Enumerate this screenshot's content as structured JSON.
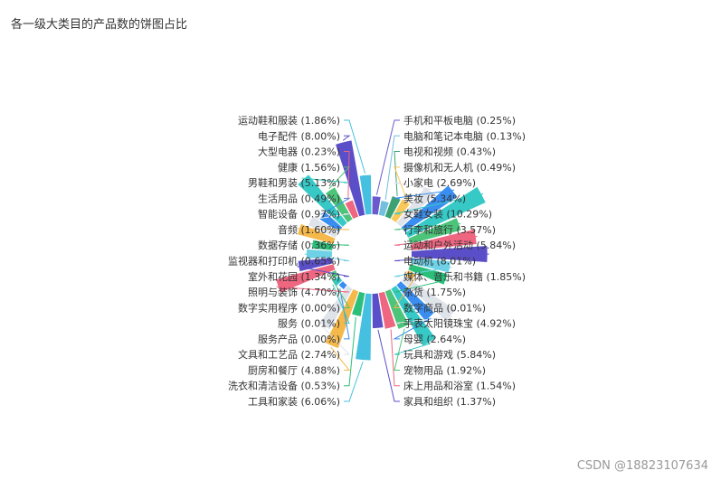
{
  "watermark": "CSDN @18823107634",
  "colors": [
    "#5470c6",
    "#91cc75",
    "#fac858",
    "#ee6666",
    "#73c0de",
    "#3ba272",
    "#fc8452",
    "#9a60b4",
    "#ea7ccc"
  ],
  "chart_data": {
    "type": "pie",
    "subtype": "rose",
    "title": "各一级大类目的产品数的饼图占比",
    "slices": [
      {
        "name": "手机和平板电脑",
        "value": 0.25,
        "label": "手机和平板电脑 (0.25%)",
        "color": "#6a5acd"
      },
      {
        "name": "电脑和笔记本电脑",
        "value": 0.13,
        "label": "电脑和笔记本电脑 (0.13%)",
        "color": "#73c0de"
      },
      {
        "name": "电视和视频",
        "value": 0.43,
        "label": "电视和视频 (0.43%)",
        "color": "#3ba272"
      },
      {
        "name": "摄像机和无人机",
        "value": 0.49,
        "label": "摄像机和无人机 (0.49%)",
        "color": "#fac858"
      },
      {
        "name": "小家电",
        "value": 2.69,
        "label": "小家电 (2.69%)",
        "color": "#e0e4ea"
      },
      {
        "name": "美妆",
        "value": 5.34,
        "label": "美妆 (5.34%)",
        "color": "#3a8ef0"
      },
      {
        "name": "女鞋女装",
        "value": 10.29,
        "label": "女鞋女装 (10.29%)",
        "color": "#36c9c6"
      },
      {
        "name": "行李和旅行",
        "value": 3.57,
        "label": "行李和旅行 (3.57%)",
        "color": "#4cc47a"
      },
      {
        "name": "运动和户外活动",
        "value": 5.84,
        "label": "运动和户外活动 (5.84%)",
        "color": "#ee6680"
      },
      {
        "name": "电动机",
        "value": 8.01,
        "label": "电动机 (8.01%)",
        "color": "#5b4fc9"
      },
      {
        "name": "媒体、音乐和书籍",
        "value": 1.85,
        "label": "媒体、音乐和书籍 (1.85%)",
        "color": "#6fd1e6"
      },
      {
        "name": "杂货",
        "value": 1.75,
        "label": "杂货 (1.75%)",
        "color": "#2bbf7a"
      },
      {
        "name": "数字商品",
        "value": 0.01,
        "label": "数字商品 (0.01%)",
        "color": "#f5b84a"
      },
      {
        "name": "手表太阳镜珠宝",
        "value": 4.92,
        "label": "手表太阳镜珠宝 (4.92%)",
        "color": "#dfe3ea"
      },
      {
        "name": "母婴",
        "value": 2.64,
        "label": "母婴 (2.64%)",
        "color": "#3a8ef0"
      },
      {
        "name": "玩具和游戏",
        "value": 5.84,
        "label": "玩具和游戏 (5.84%)",
        "color": "#36c9c6"
      },
      {
        "name": "宠物用品",
        "value": 1.92,
        "label": "宠物用品 (1.92%)",
        "color": "#4cc47a"
      },
      {
        "name": "床上用品和浴室",
        "value": 1.54,
        "label": "床上用品和浴室 (1.54%)",
        "color": "#ee6680"
      },
      {
        "name": "家具和组织",
        "value": 1.37,
        "label": "家具和组织 (1.37%)",
        "color": "#5b4fc9"
      },
      {
        "name": "工具和家装",
        "value": 6.06,
        "label": "工具和家装 (6.06%)",
        "color": "#46c0e0"
      },
      {
        "name": "洗衣和清洁设备",
        "value": 0.53,
        "label": "洗衣和清洁设备 (0.53%)",
        "color": "#2bbf7a"
      },
      {
        "name": "厨房和餐厅",
        "value": 4.88,
        "label": "厨房和餐厅 (4.88%)",
        "color": "#f5b84a"
      },
      {
        "name": "文具和工艺品",
        "value": 2.74,
        "label": "文具和工艺品 (2.74%)",
        "color": "#dfe3ea"
      },
      {
        "name": "服务产品",
        "value": 0.0,
        "label": "服务产品 (0.00%)",
        "color": "#3a8ef0"
      },
      {
        "name": "服务",
        "value": 0.01,
        "label": "服务 (0.01%)",
        "color": "#36c9c6"
      },
      {
        "name": "数字实用程序",
        "value": 0.0,
        "label": "数字实用程序 (0.00%)",
        "color": "#4cc47a"
      },
      {
        "name": "照明与装饰",
        "value": 4.7,
        "label": "照明与装饰 (4.70%)",
        "color": "#ee6680"
      },
      {
        "name": "室外和花园",
        "value": 1.34,
        "label": "室外和花园 (1.34%)",
        "color": "#5b4fc9"
      },
      {
        "name": "监视器和打印机",
        "value": 0.65,
        "label": "监视器和打印机 (0.65%)",
        "color": "#6fd1e6"
      },
      {
        "name": "数据存储",
        "value": 0.36,
        "label": "数据存储 (0.36%)",
        "color": "#2bbf7a"
      },
      {
        "name": "音频",
        "value": 1.6,
        "label": "音频 (1.60%)",
        "color": "#f5b84a"
      },
      {
        "name": "智能设备",
        "value": 0.97,
        "label": "智能设备 (0.97%)",
        "color": "#dfe3ea"
      },
      {
        "name": "生活用品",
        "value": 0.49,
        "label": "生活用品 (0.49%)",
        "color": "#3a8ef0"
      },
      {
        "name": "男鞋和男装",
        "value": 5.13,
        "label": "男鞋和男装 (5.13%)",
        "color": "#36c9c6"
      },
      {
        "name": "健康",
        "value": 1.56,
        "label": "健康 (1.56%)",
        "color": "#4cc47a"
      },
      {
        "name": "大型电器",
        "value": 0.23,
        "label": "大型电器 (0.23%)",
        "color": "#ee6680"
      },
      {
        "name": "电子配件",
        "value": 8.0,
        "label": "电子配件 (8.00%)",
        "color": "#5b4fc9"
      },
      {
        "name": "运动鞋和服装",
        "value": 1.86,
        "label": "运动鞋和服装 (1.86%)",
        "color": "#46c0e0"
      }
    ]
  }
}
